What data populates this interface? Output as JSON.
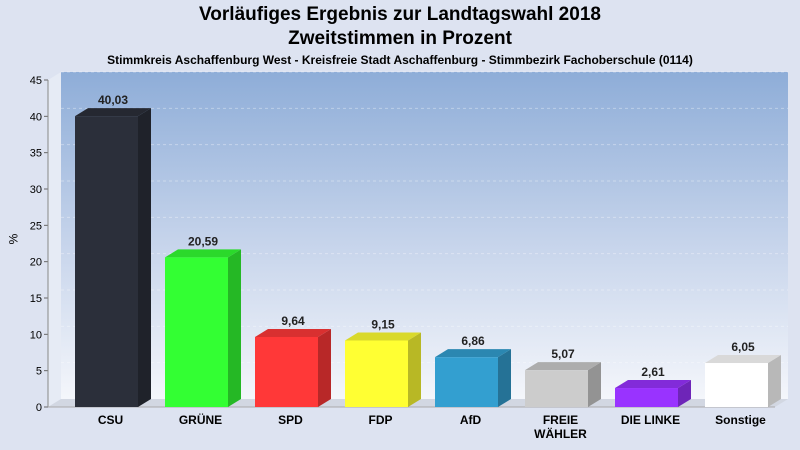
{
  "chart_data": {
    "type": "bar",
    "title": "Vorläufiges Ergebnis zur Landtagswahl 2018",
    "subtitle_line1": "Zweitstimmen in Prozent",
    "subtitle_line2": "Stimmkreis Aschaffenburg West - Kreisfreie Stadt Aschaffenburg - Stimmbezirk Fachoberschule (0114)",
    "ylabel": "%",
    "xlabel": "",
    "ylim": [
      0,
      45
    ],
    "yticks": [
      0,
      5,
      10,
      15,
      20,
      25,
      30,
      35,
      40,
      45
    ],
    "grid": true,
    "categories": [
      [
        "CSU"
      ],
      [
        "GRÜNE"
      ],
      [
        "SPD"
      ],
      [
        "FDP"
      ],
      [
        "AfD"
      ],
      [
        "FREIE",
        "WÄHLER"
      ],
      [
        "DIE LINKE"
      ],
      [
        "Sonstige"
      ]
    ],
    "values": [
      40.03,
      20.59,
      9.64,
      9.15,
      6.86,
      5.07,
      2.61,
      6.05
    ],
    "value_labels": [
      "40,03",
      "20,59",
      "9,64",
      "9,15",
      "6,86",
      "5,07",
      "2,61",
      "6,05"
    ],
    "colors": [
      "#2b2f3a",
      "#33ff33",
      "#ff3838",
      "#ffff33",
      "#339fd0",
      "#cccccc",
      "#9933ff",
      "#ffffff"
    ]
  }
}
